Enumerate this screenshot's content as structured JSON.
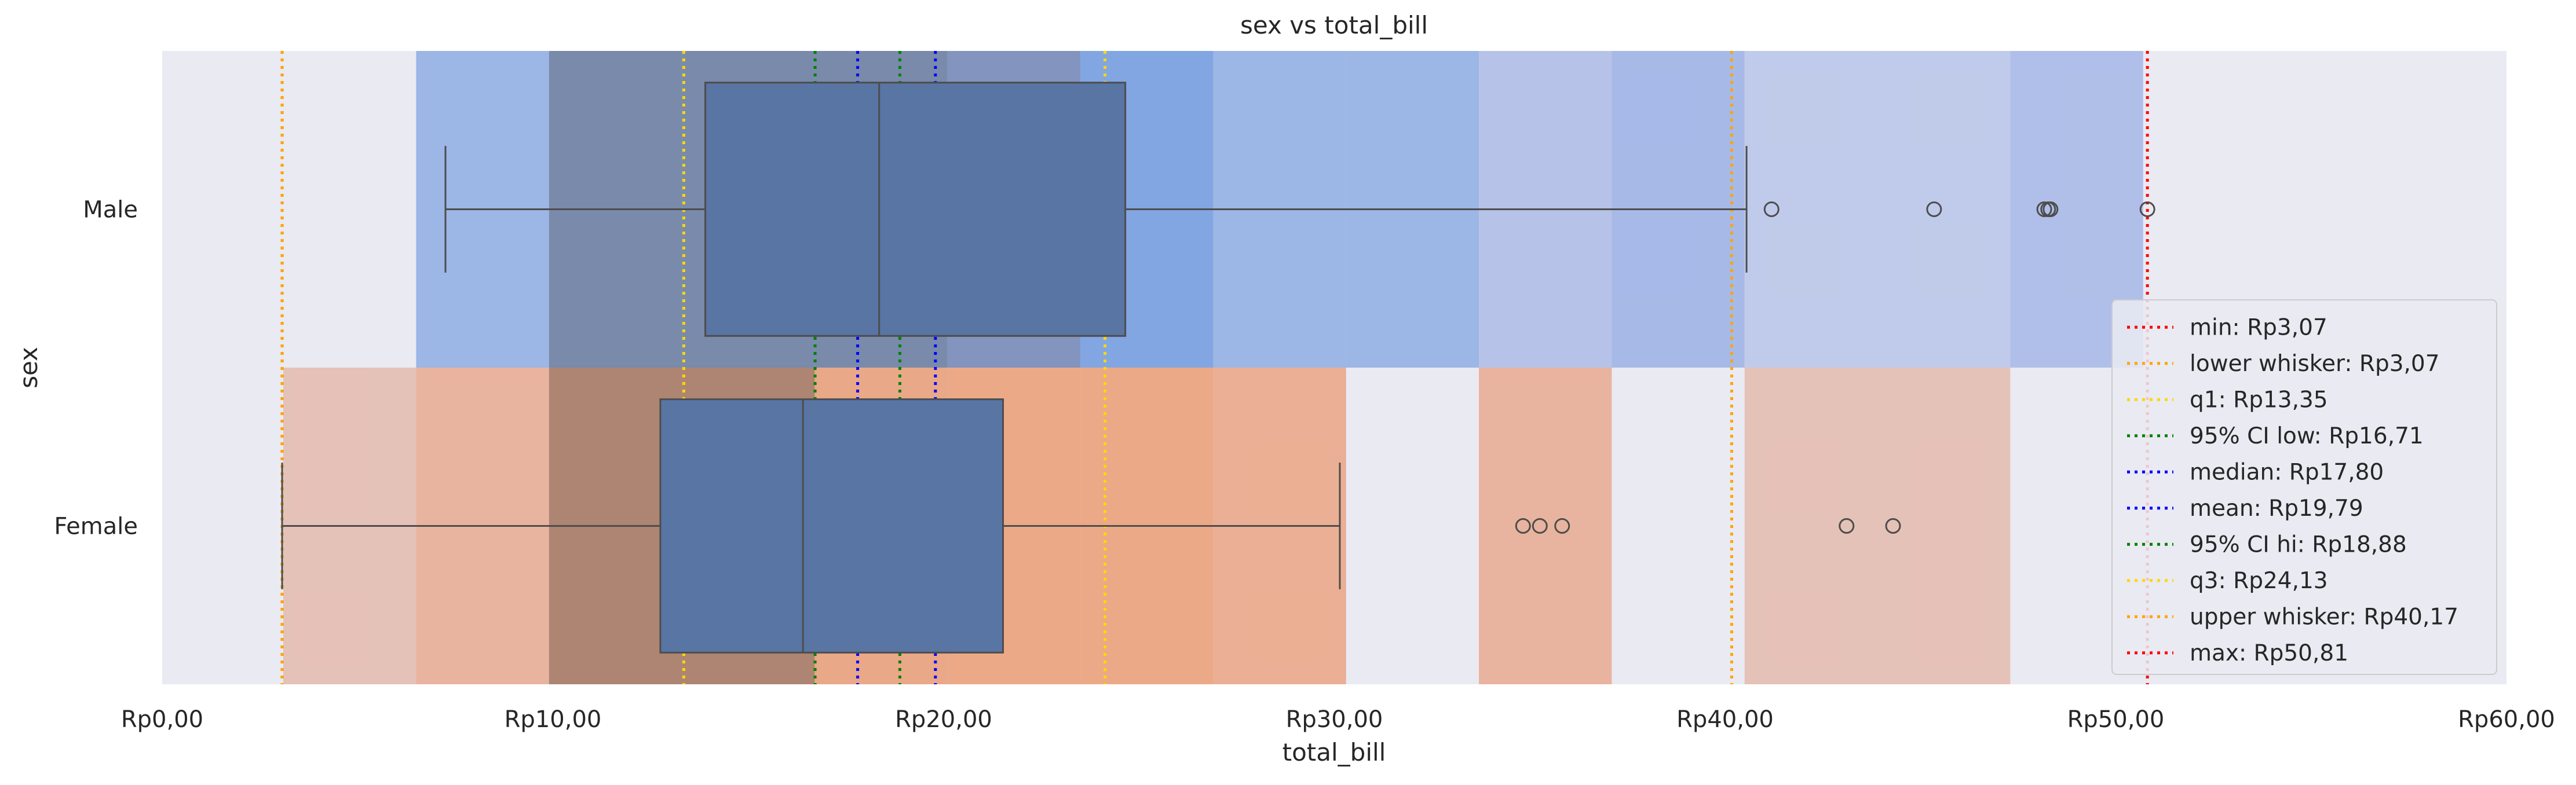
{
  "chart_data": {
    "type": "box",
    "title": "sex vs total_bill",
    "xlabel": "total_bill",
    "ylabel": "sex",
    "xlim": [
      0,
      60
    ],
    "x_ticks": [
      0,
      10,
      20,
      30,
      40,
      50,
      60
    ],
    "x_tick_labels": [
      "Rp0,00",
      "Rp10,00",
      "Rp20,00",
      "Rp30,00",
      "Rp40,00",
      "Rp50,00",
      "Rp60,00"
    ],
    "categories": [
      "Male",
      "Female"
    ],
    "grid": false,
    "legend_position": "lower-right",
    "boxes": [
      {
        "category": "Male",
        "whisker_low": 7.25,
        "q1": 13.9,
        "median": 18.35,
        "q3": 24.65,
        "whisker_high": 40.55,
        "outliers": [
          41.19,
          45.35,
          48.17,
          48.27,
          48.33,
          50.81
        ],
        "color": "#5875a4"
      },
      {
        "category": "Female",
        "whisker_low": 3.07,
        "q1": 12.75,
        "median": 16.4,
        "q3": 21.52,
        "whisker_high": 30.14,
        "outliers": [
          34.83,
          35.26,
          35.83,
          43.11,
          44.3
        ],
        "color": "#5875a4"
      }
    ],
    "background_bands": [
      {
        "category": "Male",
        "x0": 6.5,
        "x1": 9.9,
        "color": "#7b9fe0",
        "opacity": 0.7
      },
      {
        "category": "Male",
        "x0": 9.9,
        "x1": 13.3,
        "color": "#6d7fa3",
        "opacity": 0.9
      },
      {
        "category": "Male",
        "x0": 13.3,
        "x1": 16.7,
        "color": "#6d7fa3",
        "opacity": 0.9
      },
      {
        "category": "Male",
        "x0": 16.7,
        "x1": 20.1,
        "color": "#6d7fa3",
        "opacity": 0.9
      },
      {
        "category": "Male",
        "x0": 20.1,
        "x1": 23.5,
        "color": "#7185b5",
        "opacity": 0.85
      },
      {
        "category": "Male",
        "x0": 23.5,
        "x1": 26.9,
        "color": "#5f8fdc",
        "opacity": 0.75
      },
      {
        "category": "Male",
        "x0": 26.9,
        "x1": 30.3,
        "color": "#7b9fe0",
        "opacity": 0.7
      },
      {
        "category": "Male",
        "x0": 30.3,
        "x1": 33.7,
        "color": "#7b9fe0",
        "opacity": 0.7
      },
      {
        "category": "Male",
        "x0": 33.7,
        "x1": 37.1,
        "color": "#9fb1e3",
        "opacity": 0.7
      },
      {
        "category": "Male",
        "x0": 37.1,
        "x1": 40.5,
        "color": "#8aa4e3",
        "opacity": 0.7
      },
      {
        "category": "Male",
        "x0": 40.5,
        "x1": 43.9,
        "color": "#a9bae6",
        "opacity": 0.65
      },
      {
        "category": "Male",
        "x0": 43.9,
        "x1": 47.3,
        "color": "#a9bae6",
        "opacity": 0.65
      },
      {
        "category": "Male",
        "x0": 47.3,
        "x1": 50.7,
        "color": "#90a8e3",
        "opacity": 0.65
      },
      {
        "category": "Female",
        "x0": 3.1,
        "x1": 6.5,
        "color": "#e3b09e",
        "opacity": 0.7
      },
      {
        "category": "Female",
        "x0": 6.5,
        "x1": 9.9,
        "color": "#e8a283",
        "opacity": 0.75
      },
      {
        "category": "Female",
        "x0": 9.9,
        "x1": 13.3,
        "color": "#a67a64",
        "opacity": 0.9
      },
      {
        "category": "Female",
        "x0": 13.3,
        "x1": 16.7,
        "color": "#a67a64",
        "opacity": 0.9
      },
      {
        "category": "Female",
        "x0": 16.7,
        "x1": 20.1,
        "color": "#e8976d",
        "opacity": 0.8
      },
      {
        "category": "Female",
        "x0": 20.1,
        "x1": 23.5,
        "color": "#ec9e74",
        "opacity": 0.85
      },
      {
        "category": "Female",
        "x0": 23.5,
        "x1": 26.9,
        "color": "#ec9e74",
        "opacity": 0.85
      },
      {
        "category": "Female",
        "x0": 26.9,
        "x1": 30.3,
        "color": "#eba07d",
        "opacity": 0.8
      },
      {
        "category": "Female",
        "x0": 33.7,
        "x1": 37.1,
        "color": "#e8a283",
        "opacity": 0.75
      },
      {
        "category": "Female",
        "x0": 40.5,
        "x1": 43.9,
        "color": "#e3b09e",
        "opacity": 0.7
      },
      {
        "category": "Female",
        "x0": 43.9,
        "x1": 47.3,
        "color": "#e3b09e",
        "opacity": 0.7
      }
    ],
    "reference_lines": [
      {
        "label": "min: Rp3,07",
        "value": 3.07,
        "color": "#ff0000"
      },
      {
        "label": "lower whisker: Rp3,07",
        "value": 3.07,
        "color": "#ffa500"
      },
      {
        "label": "q1: Rp13,35",
        "value": 13.35,
        "color": "#ffd700"
      },
      {
        "label": "95% CI low: Rp16,71",
        "value": 16.71,
        "color": "#008000"
      },
      {
        "label": "median: Rp17,80",
        "value": 17.8,
        "color": "#0000ff"
      },
      {
        "label": "mean: Rp19,79",
        "value": 19.79,
        "color": "#0000ff"
      },
      {
        "label": "95% CI hi: Rp18,88",
        "value": 18.88,
        "color": "#008000"
      },
      {
        "label": "q3: Rp24,13",
        "value": 24.13,
        "color": "#ffd700"
      },
      {
        "label": "upper whisker: Rp40,17",
        "value": 40.17,
        "color": "#ffa500"
      },
      {
        "label": "max: Rp50,81",
        "value": 50.81,
        "color": "#ff0000"
      }
    ],
    "colors": {
      "axes_background": "#eaeaf2",
      "box_edge": "#4d4d4d"
    }
  }
}
